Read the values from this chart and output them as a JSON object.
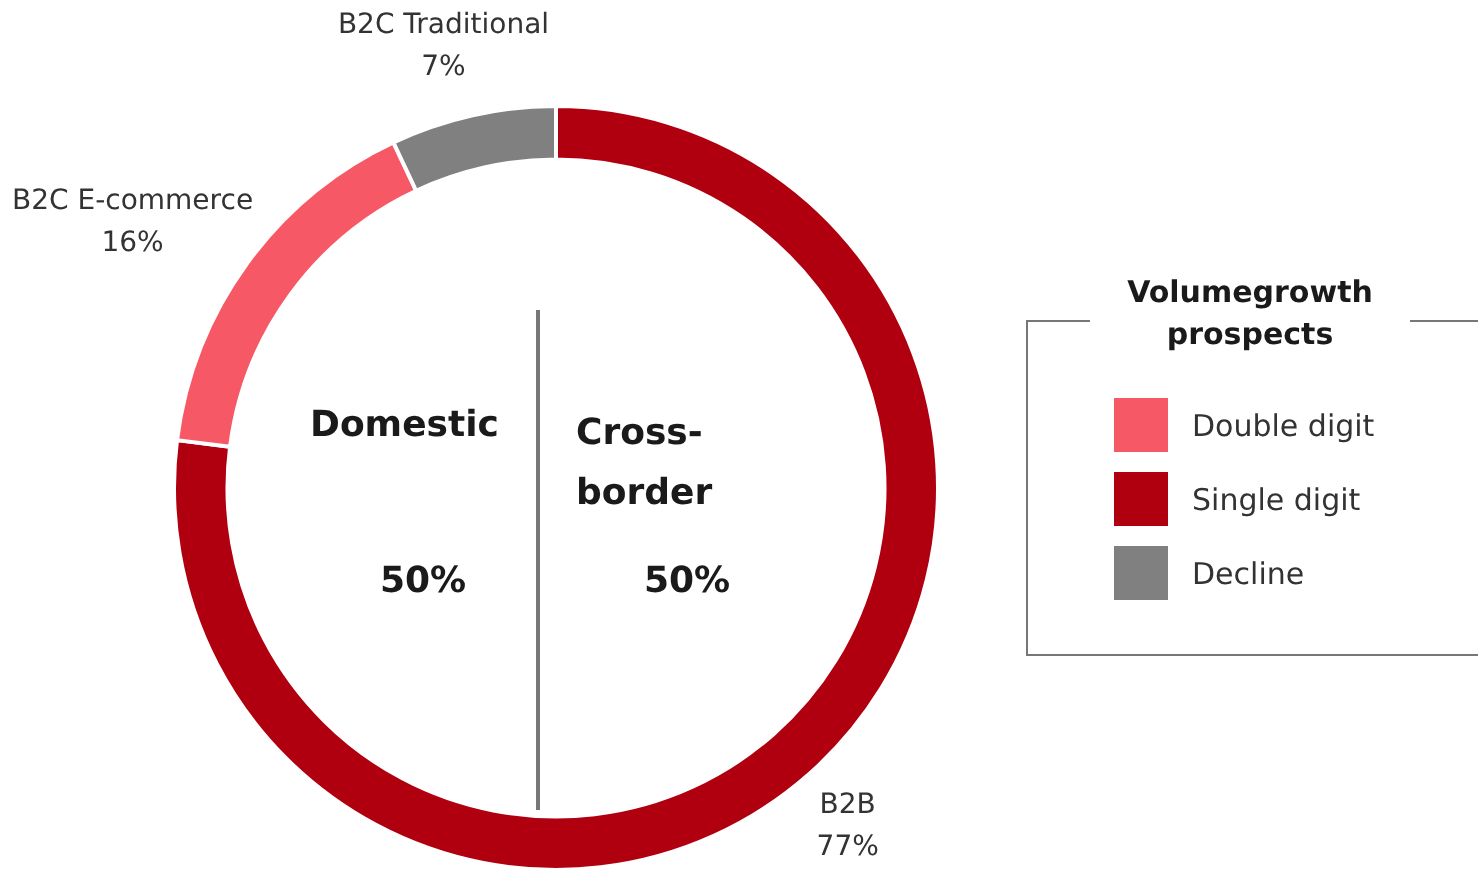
{
  "chart_data": {
    "type": "donut",
    "categories": [
      "B2B",
      "B2C E-commerce",
      "B2C Traditional"
    ],
    "values": [
      77,
      16,
      7
    ],
    "colors": [
      "#b0000f",
      "#f75865",
      "#808080"
    ],
    "value_labels": [
      "77%",
      "16%",
      "7%"
    ],
    "legend_title": "Volumegrowth prospects",
    "annotations": [
      "Domestic",
      "50%",
      "Cross-border",
      "50%",
      "Double digit",
      "Single digit",
      "Decline"
    ]
  }
}
